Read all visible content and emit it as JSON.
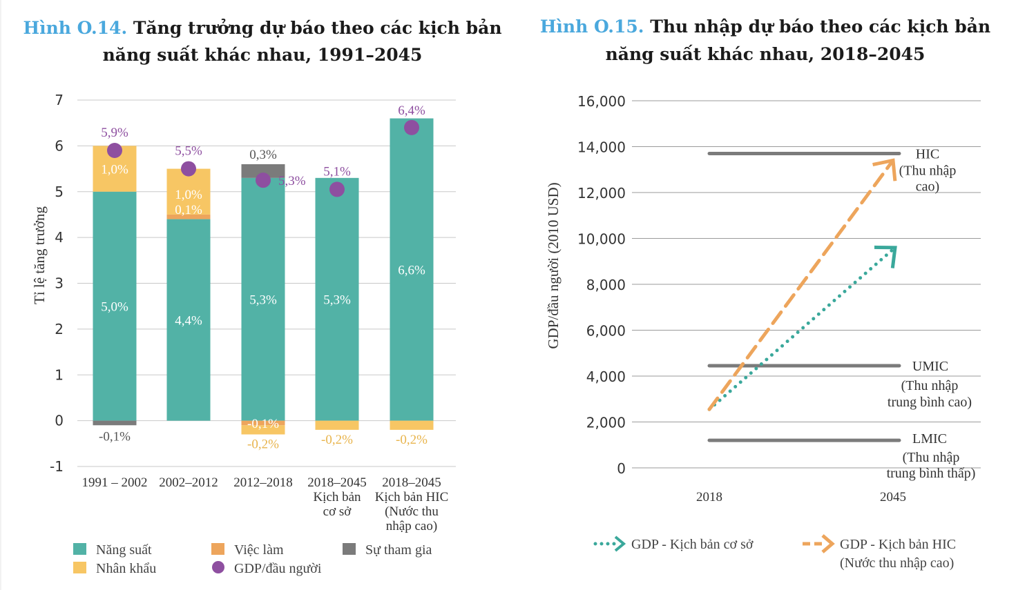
{
  "chart_data": [
    {
      "type": "bar",
      "stacked": true,
      "title_prefix": "Hình O.14.",
      "title_line1": "Tăng trưởng dự báo theo các kịch bản",
      "title_line2": "năng suất khác nhau, 1991–2045",
      "ylabel": "Tỉ lệ tăng trưởng",
      "ylim": [
        -1,
        7
      ],
      "yticks": [
        -1,
        0,
        1,
        2,
        3,
        4,
        5,
        6,
        7
      ],
      "grid": true,
      "categories": [
        [
          "1991 – 2002"
        ],
        [
          "2002–2012"
        ],
        [
          "2012–2018"
        ],
        [
          "2018–2045",
          "Kịch bản",
          "cơ sở"
        ],
        [
          "2018–2045",
          "Kịch bản HIC",
          "(Nước thu",
          "nhập cao)"
        ]
      ],
      "series": [
        {
          "name": "Năng suất",
          "key": "productivity",
          "color": "#52b2a6",
          "values": [
            5.0,
            4.4,
            5.3,
            5.3,
            6.6
          ],
          "labels": [
            "5,0%",
            "4,4%",
            "5,3%",
            "5,3%",
            "6,6%"
          ],
          "label_color": "#ffffff"
        },
        {
          "name": "Việc làm",
          "key": "employment",
          "color": "#eda55c",
          "values": [
            0,
            0.1,
            -0.1,
            0,
            0
          ],
          "labels": [
            "",
            "0,1%",
            "-0,1%",
            "",
            ""
          ],
          "label_color": "#ffffff"
        },
        {
          "name": "Nhân khẩu",
          "key": "demographic",
          "color": "#f7c664",
          "values": [
            1.0,
            1.0,
            -0.2,
            -0.2,
            -0.2
          ],
          "labels": [
            "1,0%",
            "1,0%",
            "-0,2%",
            "-0,2%",
            "-0,2%"
          ],
          "label_color": "#ffffff",
          "neg_label_color": "#e8b44c"
        },
        {
          "name": "Sự tham gia",
          "key": "participation",
          "color": "#7b7b7b",
          "values": [
            -0.1,
            0,
            0.3,
            0,
            0
          ],
          "labels": [
            "-0,1%",
            "",
            "0,3%",
            "",
            ""
          ],
          "label_color": "#555555"
        }
      ],
      "gdp_per_capita": {
        "name": "GDP/đầu người",
        "color": "#8e4fa0",
        "values": [
          5.9,
          5.5,
          5.25,
          5.05,
          6.4
        ],
        "labels": [
          "5,9%",
          "5,5%",
          "5,3%",
          "5,1%",
          "6,4%"
        ]
      },
      "legend": [
        "Năng suất",
        "Việc làm",
        "Sự tham gia",
        "Nhân khẩu",
        "GDP/đầu người"
      ]
    },
    {
      "type": "line",
      "title_prefix": "Hình O.15.",
      "title_line1": "Thu nhập dự báo theo các kịch bản",
      "title_line2": "năng suất khác nhau, 2018–2045",
      "ylabel": "GDP/đầu người (2010 USD)",
      "ylim": [
        0,
        16000
      ],
      "yticks": [
        0,
        2000,
        4000,
        6000,
        8000,
        10000,
        12000,
        14000,
        16000
      ],
      "ytick_labels": [
        "0",
        "2,000",
        "4,000",
        "6,000",
        "8,000",
        "10,000",
        "12,000",
        "14,000",
        "16,000"
      ],
      "x": [
        2018,
        2045
      ],
      "xtick_labels": [
        "2018",
        "2045"
      ],
      "thresholds": [
        {
          "name": "HIC",
          "value": 13700,
          "label_lines": [
            "HIC",
            "(Thu nhập",
            "cao)"
          ]
        },
        {
          "name": "UMIC",
          "value": 4450,
          "label_lines": [
            "UMIC",
            "(Thu nhập",
            "trung bình cao)"
          ]
        },
        {
          "name": "LMIC",
          "value": 1200,
          "label_lines": [
            "LMIC",
            "(Thu nhập",
            "trung bình thấp)"
          ]
        }
      ],
      "series": [
        {
          "name": "GDP - Kịch bản cơ sở",
          "style": "dotted",
          "color": "#3aa89b",
          "values": [
            2550,
            9600
          ]
        },
        {
          "name": "GDP - Kịch bản HIC",
          "name_line2": "(Nước thu nhập cao)",
          "style": "dashed",
          "color": "#eda55c",
          "values": [
            2550,
            13400
          ]
        }
      ]
    }
  ]
}
